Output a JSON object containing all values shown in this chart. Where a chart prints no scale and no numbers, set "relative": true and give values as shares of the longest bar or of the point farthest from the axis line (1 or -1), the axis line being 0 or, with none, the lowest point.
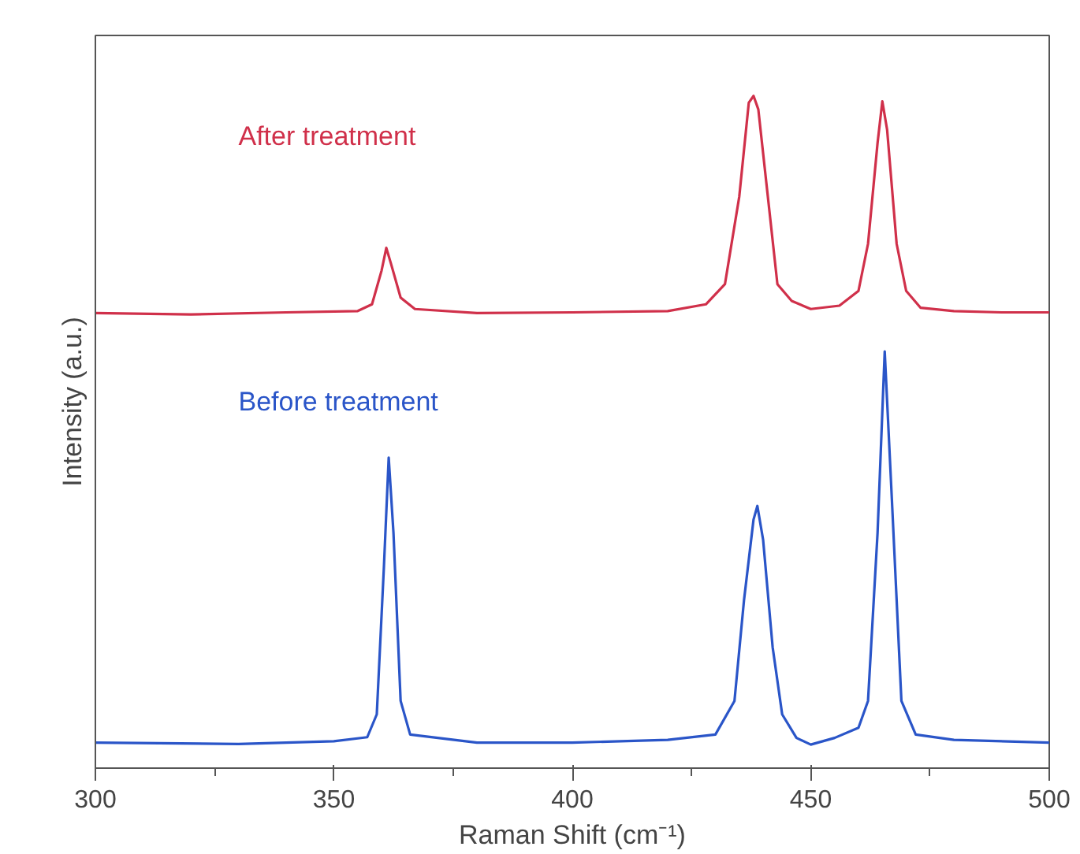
{
  "chart_data": {
    "type": "line",
    "relative": true,
    "xlabel": "Raman Shift (cm⁻¹)",
    "ylabel": "Intensity (a.u.)",
    "xlim": [
      300,
      500
    ],
    "xticks": [
      300,
      {
        "value": 325,
        "label": null
      },
      350,
      {
        "value": 375,
        "label": null
      },
      400,
      {
        "value": 425,
        "label": null
      },
      450,
      {
        "value": 475,
        "label": null
      },
      500
    ],
    "grid": false,
    "marker": "none",
    "line_style": "solid",
    "series": [
      {
        "name": "After treatment",
        "color": "#d0304a",
        "x": [
          300,
          320,
          340,
          355,
          358,
          360,
          361,
          362,
          364,
          367,
          380,
          400,
          420,
          428,
          432,
          435,
          437,
          438,
          439,
          441,
          443,
          446,
          450,
          456,
          460,
          462,
          464,
          465,
          466,
          468,
          470,
          473,
          480,
          490,
          500
        ],
        "values": [
          0.677,
          0.675,
          0.678,
          0.68,
          0.69,
          0.74,
          0.774,
          0.75,
          0.7,
          0.683,
          0.677,
          0.678,
          0.68,
          0.69,
          0.72,
          0.85,
          0.99,
          1.0,
          0.98,
          0.85,
          0.72,
          0.695,
          0.683,
          0.688,
          0.71,
          0.78,
          0.93,
          0.992,
          0.95,
          0.78,
          0.71,
          0.685,
          0.68,
          0.678,
          0.678
        ]
      },
      {
        "name": "Before treatment",
        "color": "#2a55c8",
        "x": [
          300,
          330,
          350,
          357,
          359,
          360.5,
          361.5,
          362.5,
          364,
          366,
          380,
          400,
          420,
          430,
          434,
          436,
          438,
          438.8,
          440,
          442,
          444,
          447,
          450,
          455,
          460,
          462,
          464,
          465.5,
          467,
          469,
          472,
          480,
          500
        ],
        "values": [
          0.038,
          0.036,
          0.04,
          0.046,
          0.08,
          0.3,
          0.462,
          0.35,
          0.1,
          0.05,
          0.038,
          0.038,
          0.042,
          0.05,
          0.1,
          0.25,
          0.37,
          0.39,
          0.34,
          0.18,
          0.08,
          0.045,
          0.035,
          0.045,
          0.06,
          0.1,
          0.35,
          0.62,
          0.4,
          0.1,
          0.05,
          0.042,
          0.038
        ]
      }
    ]
  }
}
